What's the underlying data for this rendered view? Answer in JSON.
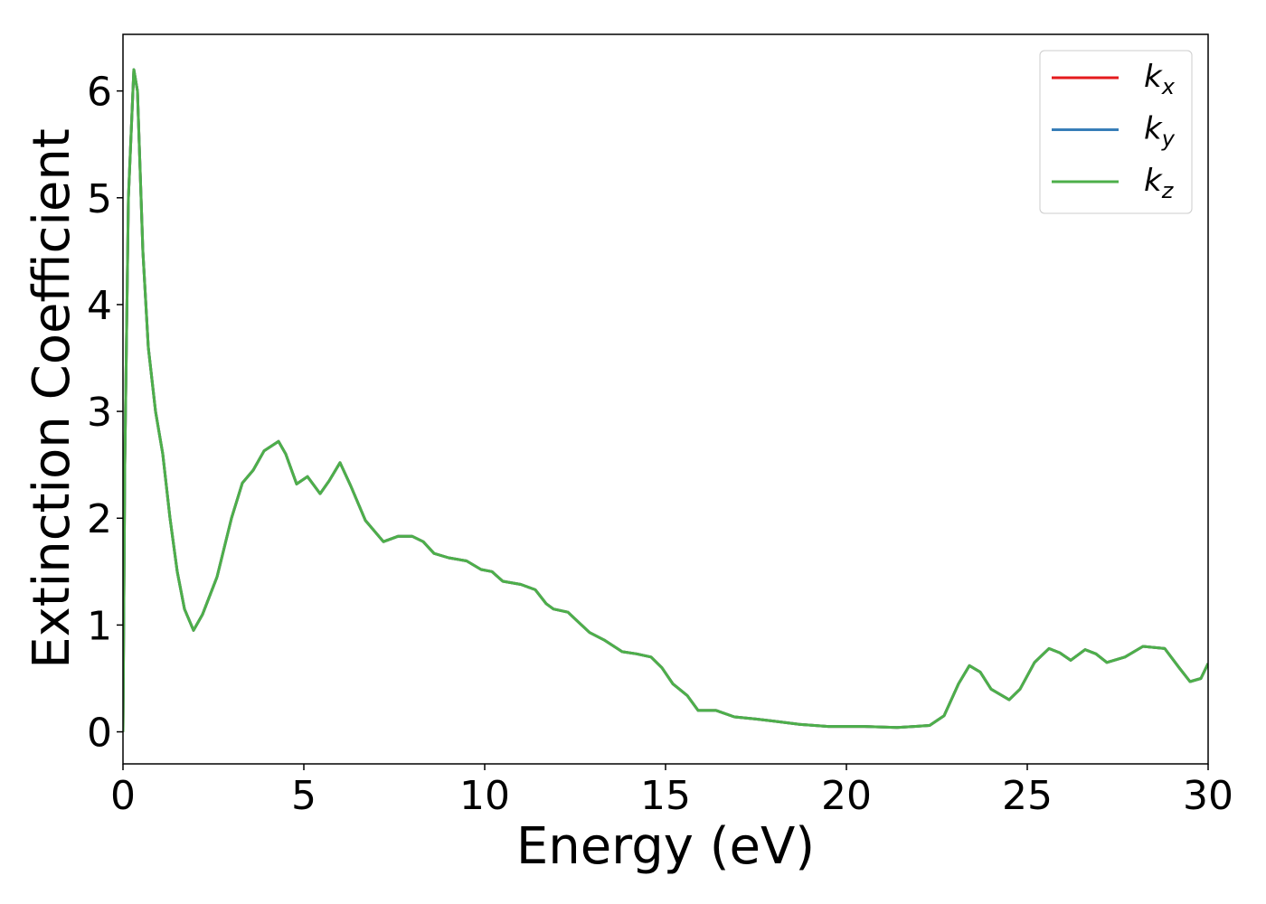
{
  "chart_data": {
    "type": "line",
    "xlabel": "Energy (eV)",
    "ylabel": "Extinction Coefficient",
    "x": [
      0,
      0.05,
      0.15,
      0.3,
      0.4,
      0.55,
      0.7,
      0.9,
      1.1,
      1.3,
      1.5,
      1.7,
      1.95,
      2.2,
      2.6,
      3.0,
      3.3,
      3.6,
      3.9,
      4.3,
      4.5,
      4.8,
      5.1,
      5.45,
      5.7,
      6.0,
      6.3,
      6.7,
      7.2,
      7.6,
      8.0,
      8.3,
      8.6,
      9.0,
      9.5,
      9.9,
      10.2,
      10.5,
      11.0,
      11.4,
      11.7,
      11.9,
      12.3,
      12.9,
      13.3,
      13.8,
      14.2,
      14.6,
      14.9,
      15.2,
      15.6,
      15.9,
      16.4,
      16.9,
      17.5,
      18.0,
      18.7,
      19.5,
      20.5,
      21.4,
      22.3,
      22.7,
      23.1,
      23.4,
      23.7,
      24.0,
      24.5,
      24.8,
      25.2,
      25.6,
      25.9,
      26.2,
      26.6,
      26.9,
      27.2,
      27.7,
      28.2,
      28.8,
      29.2,
      29.5,
      29.8,
      30.0
    ],
    "series": [
      {
        "name": "k_x",
        "color": "#e41a1c",
        "values": [
          0,
          2.5,
          5.0,
          6.2,
          6.0,
          4.5,
          3.6,
          3.0,
          2.6,
          2.0,
          1.5,
          1.15,
          0.95,
          1.1,
          1.45,
          2.0,
          2.33,
          2.45,
          2.63,
          2.72,
          2.6,
          2.32,
          2.39,
          2.23,
          2.35,
          2.52,
          2.3,
          1.98,
          1.78,
          1.83,
          1.83,
          1.78,
          1.67,
          1.63,
          1.6,
          1.52,
          1.5,
          1.41,
          1.38,
          1.33,
          1.2,
          1.15,
          1.12,
          0.93,
          0.86,
          0.75,
          0.73,
          0.7,
          0.6,
          0.45,
          0.34,
          0.2,
          0.2,
          0.14,
          0.12,
          0.1,
          0.07,
          0.05,
          0.05,
          0.04,
          0.06,
          0.15,
          0.45,
          0.62,
          0.56,
          0.4,
          0.3,
          0.4,
          0.65,
          0.78,
          0.74,
          0.67,
          0.77,
          0.73,
          0.65,
          0.7,
          0.8,
          0.78,
          0.6,
          0.47,
          0.5,
          0.64
        ]
      },
      {
        "name": "k_y",
        "color": "#377eb8",
        "values": [
          0,
          2.5,
          5.0,
          6.2,
          6.0,
          4.5,
          3.6,
          3.0,
          2.6,
          2.0,
          1.5,
          1.15,
          0.95,
          1.1,
          1.45,
          2.0,
          2.33,
          2.45,
          2.63,
          2.72,
          2.6,
          2.32,
          2.39,
          2.23,
          2.35,
          2.52,
          2.3,
          1.98,
          1.78,
          1.83,
          1.83,
          1.78,
          1.67,
          1.63,
          1.6,
          1.52,
          1.5,
          1.41,
          1.38,
          1.33,
          1.2,
          1.15,
          1.12,
          0.93,
          0.86,
          0.75,
          0.73,
          0.7,
          0.6,
          0.45,
          0.34,
          0.2,
          0.2,
          0.14,
          0.12,
          0.1,
          0.07,
          0.05,
          0.05,
          0.04,
          0.06,
          0.15,
          0.45,
          0.62,
          0.56,
          0.4,
          0.3,
          0.4,
          0.65,
          0.78,
          0.74,
          0.67,
          0.77,
          0.73,
          0.65,
          0.7,
          0.8,
          0.78,
          0.6,
          0.47,
          0.5,
          0.64
        ]
      },
      {
        "name": "k_z",
        "color": "#4daf4a",
        "values": [
          0,
          2.5,
          5.0,
          6.2,
          6.0,
          4.5,
          3.6,
          3.0,
          2.6,
          2.0,
          1.5,
          1.15,
          0.95,
          1.1,
          1.45,
          2.0,
          2.33,
          2.45,
          2.63,
          2.72,
          2.6,
          2.32,
          2.39,
          2.23,
          2.35,
          2.52,
          2.3,
          1.98,
          1.78,
          1.83,
          1.83,
          1.78,
          1.67,
          1.63,
          1.6,
          1.52,
          1.5,
          1.41,
          1.38,
          1.33,
          1.2,
          1.15,
          1.12,
          0.93,
          0.86,
          0.75,
          0.73,
          0.7,
          0.6,
          0.45,
          0.34,
          0.2,
          0.2,
          0.14,
          0.12,
          0.1,
          0.07,
          0.05,
          0.05,
          0.04,
          0.06,
          0.15,
          0.45,
          0.62,
          0.56,
          0.4,
          0.3,
          0.4,
          0.65,
          0.78,
          0.74,
          0.67,
          0.77,
          0.73,
          0.65,
          0.7,
          0.8,
          0.78,
          0.6,
          0.47,
          0.5,
          0.64
        ]
      }
    ],
    "xlim": [
      0,
      30
    ],
    "xticks": [
      0,
      5,
      10,
      15,
      20,
      25,
      30
    ],
    "ylim": [
      -0.3,
      6.53
    ],
    "yticks": [
      0,
      1,
      2,
      3,
      4,
      5,
      6
    ],
    "grid": false,
    "legend": "upper right"
  }
}
